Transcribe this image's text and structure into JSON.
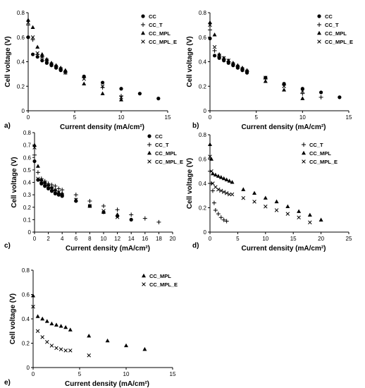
{
  "chart_data": [
    {
      "panel_label": "a)",
      "type": "scatter",
      "xlabel": "Current density (mA/cm²)",
      "ylabel": "Cell voltage (V)",
      "xlim": [
        0,
        15
      ],
      "ylim": [
        0,
        0.8
      ],
      "xticks": [
        0,
        5,
        10,
        15
      ],
      "yticks": [
        0,
        0.2,
        0.4,
        0.6,
        0.8
      ],
      "legend": "top-right",
      "series": [
        {
          "name": "CC",
          "marker": "circle",
          "x": [
            0,
            0.5,
            1,
            1.5,
            2,
            2.5,
            3,
            3.5,
            4,
            6,
            8,
            10,
            12,
            14
          ],
          "y": [
            0.6,
            0.46,
            0.44,
            0.41,
            0.39,
            0.37,
            0.35,
            0.33,
            0.32,
            0.28,
            0.23,
            0.18,
            0.14,
            0.1
          ]
        },
        {
          "name": "CC_T",
          "marker": "plus",
          "x": [
            0,
            0.5,
            1,
            1.5,
            2,
            2.5,
            3,
            3.5,
            4,
            6,
            8,
            10
          ],
          "y": [
            0.7,
            0.58,
            0.46,
            0.44,
            0.41,
            0.38,
            0.36,
            0.34,
            0.31,
            0.27,
            0.19,
            0.12
          ]
        },
        {
          "name": "CC_MPL",
          "marker": "triangle",
          "x": [
            0,
            0.5,
            1,
            1.5,
            2,
            2.5,
            3,
            3.5,
            4,
            6,
            8,
            10
          ],
          "y": [
            0.74,
            0.68,
            0.52,
            0.46,
            0.42,
            0.39,
            0.37,
            0.35,
            0.33,
            0.22,
            0.14,
            0.09
          ]
        },
        {
          "name": "CC_MPL_E",
          "marker": "x",
          "x": [
            0,
            0.5,
            1,
            1.5,
            2,
            2.5,
            3,
            3.5,
            4,
            6,
            8,
            10
          ],
          "y": [
            0.72,
            0.6,
            0.47,
            0.44,
            0.41,
            0.38,
            0.36,
            0.34,
            0.31,
            0.26,
            0.2,
            0.11
          ]
        }
      ]
    },
    {
      "panel_label": "b)",
      "type": "scatter",
      "xlabel": "Current density (mA/cm²)",
      "ylabel": "Cell voltage (V)",
      "xlim": [
        0,
        15
      ],
      "ylim": [
        0,
        0.8
      ],
      "xticks": [
        0,
        5,
        10,
        15
      ],
      "yticks": [
        0,
        0.2,
        0.4,
        0.6,
        0.8
      ],
      "legend": "top-right",
      "series": [
        {
          "name": "CC",
          "marker": "circle",
          "x": [
            0,
            0.5,
            1,
            1.5,
            2,
            2.5,
            3,
            3.5,
            4,
            6,
            8,
            10,
            12,
            14
          ],
          "y": [
            0.59,
            0.45,
            0.43,
            0.41,
            0.39,
            0.37,
            0.35,
            0.33,
            0.31,
            0.27,
            0.22,
            0.18,
            0.15,
            0.11
          ]
        },
        {
          "name": "CC_T",
          "marker": "plus",
          "x": [
            0,
            0.5,
            1,
            1.5,
            2,
            2.5,
            3,
            3.5,
            4,
            6,
            8,
            10,
            12
          ],
          "y": [
            0.66,
            0.49,
            0.44,
            0.42,
            0.4,
            0.38,
            0.36,
            0.34,
            0.32,
            0.26,
            0.21,
            0.14,
            0.11
          ]
        },
        {
          "name": "CC_MPL",
          "marker": "triangle",
          "x": [
            0,
            0.5,
            1,
            1.5,
            2,
            2.5,
            3,
            3.5,
            4,
            6,
            8,
            10
          ],
          "y": [
            0.72,
            0.62,
            0.46,
            0.43,
            0.41,
            0.39,
            0.37,
            0.35,
            0.33,
            0.24,
            0.17,
            0.1
          ]
        },
        {
          "name": "CC_MPL_E",
          "marker": "x",
          "x": [
            0,
            0.5,
            1,
            1.5,
            2,
            2.5,
            3,
            3.5,
            4,
            6,
            8,
            10
          ],
          "y": [
            0.7,
            0.52,
            0.45,
            0.43,
            0.41,
            0.38,
            0.36,
            0.34,
            0.32,
            0.27,
            0.2,
            0.16
          ]
        }
      ]
    },
    {
      "panel_label": "c)",
      "type": "scatter",
      "xlabel": "Current density (mA/cm²)",
      "ylabel": "Cell voltage (V)",
      "xlim": [
        0,
        20
      ],
      "ylim": [
        0,
        0.8
      ],
      "xticks": [
        0,
        2,
        4,
        6,
        8,
        10,
        12,
        14,
        16,
        18,
        20
      ],
      "yticks": [
        0,
        0.1,
        0.2,
        0.3,
        0.4,
        0.5,
        0.6,
        0.7,
        0.8
      ],
      "legend": "top-right",
      "series": [
        {
          "name": "CC",
          "marker": "circle",
          "x": [
            0,
            0.5,
            1,
            1.5,
            2,
            2.5,
            3,
            3.5,
            4,
            6,
            8,
            10,
            12,
            14
          ],
          "y": [
            0.57,
            0.42,
            0.39,
            0.37,
            0.35,
            0.33,
            0.31,
            0.3,
            0.29,
            0.25,
            0.21,
            0.16,
            0.13,
            0.1
          ]
        },
        {
          "name": "CC_T",
          "marker": "plus",
          "x": [
            0,
            0.5,
            1,
            1.5,
            2,
            2.5,
            3,
            3.5,
            4,
            6,
            8,
            10,
            12,
            14,
            16,
            18
          ],
          "y": [
            0.62,
            0.48,
            0.43,
            0.41,
            0.39,
            0.38,
            0.37,
            0.35,
            0.34,
            0.3,
            0.25,
            0.21,
            0.18,
            0.14,
            0.11,
            0.08
          ]
        },
        {
          "name": "CC_MPL",
          "marker": "triangle",
          "x": [
            0,
            0.5,
            1,
            1.5,
            2,
            2.5,
            3,
            3.5,
            4,
            6,
            8,
            10,
            12
          ],
          "y": [
            0.7,
            0.53,
            0.42,
            0.4,
            0.38,
            0.36,
            0.34,
            0.32,
            0.31,
            0.26,
            0.21,
            0.16,
            0.14
          ]
        },
        {
          "name": "CC_MPL_E",
          "marker": "x",
          "x": [
            0,
            0.5,
            1,
            1.5,
            2,
            2.5,
            3,
            3.5,
            4,
            6,
            8,
            10,
            12
          ],
          "y": [
            0.68,
            0.43,
            0.41,
            0.39,
            0.37,
            0.35,
            0.33,
            0.32,
            0.3,
            0.26,
            0.21,
            0.17,
            0.12
          ]
        }
      ]
    },
    {
      "panel_label": "d)",
      "type": "scatter",
      "xlabel": "Current density (mA/cm²)",
      "ylabel": "Cell voltage (V)",
      "xlim": [
        0,
        25
      ],
      "ylim": [
        0,
        0.8
      ],
      "xticks": [
        0,
        5,
        10,
        15,
        20,
        25
      ],
      "yticks": [
        0,
        0.2,
        0.4,
        0.6,
        0.8
      ],
      "legend": "top-right",
      "series": [
        {
          "name": "CC_T",
          "marker": "plus",
          "x": [
            0,
            0.25,
            0.5,
            0.75,
            1,
            1.5,
            2,
            2.5,
            3
          ],
          "y": [
            0.5,
            0.4,
            0.34,
            0.24,
            0.18,
            0.15,
            0.12,
            0.1,
            0.09
          ]
        },
        {
          "name": "CC_MPL",
          "marker": "triangle",
          "x": [
            0,
            0.25,
            0.5,
            1,
            1.5,
            2,
            2.5,
            3,
            3.5,
            4,
            6,
            8,
            10,
            12,
            14,
            16,
            18,
            20
          ],
          "y": [
            0.72,
            0.6,
            0.48,
            0.47,
            0.46,
            0.45,
            0.44,
            0.43,
            0.42,
            0.41,
            0.35,
            0.32,
            0.28,
            0.25,
            0.21,
            0.17,
            0.14,
            0.1
          ]
        },
        {
          "name": "CC_MPL_E",
          "marker": "x",
          "x": [
            0,
            0.25,
            0.5,
            1,
            1.5,
            2,
            2.5,
            3,
            3.5,
            4,
            6,
            8,
            10,
            12,
            14,
            16,
            18
          ],
          "y": [
            0.62,
            0.5,
            0.4,
            0.37,
            0.35,
            0.34,
            0.33,
            0.32,
            0.31,
            0.31,
            0.28,
            0.25,
            0.21,
            0.18,
            0.15,
            0.12,
            0.08
          ]
        }
      ]
    },
    {
      "panel_label": "e)",
      "type": "scatter",
      "xlabel": "Current density (mA/cm²)",
      "ylabel": "Cell voltage (V)",
      "xlim": [
        0,
        15
      ],
      "ylim": [
        0,
        0.8
      ],
      "xticks": [
        0,
        5,
        10,
        15
      ],
      "yticks": [
        0,
        0.2,
        0.4,
        0.6,
        0.8
      ],
      "legend": "top-right",
      "series": [
        {
          "name": "CC_MPL",
          "marker": "triangle",
          "x": [
            0,
            0.5,
            1,
            1.5,
            2,
            2.5,
            3,
            3.5,
            4,
            6,
            8,
            10,
            12
          ],
          "y": [
            0.59,
            0.42,
            0.4,
            0.38,
            0.36,
            0.35,
            0.34,
            0.33,
            0.31,
            0.26,
            0.22,
            0.18,
            0.15
          ]
        },
        {
          "name": "CC_MPL_E",
          "marker": "x",
          "x": [
            0,
            0.5,
            1,
            1.5,
            2,
            2.5,
            3,
            3.5,
            4,
            6
          ],
          "y": [
            0.5,
            0.3,
            0.25,
            0.21,
            0.18,
            0.16,
            0.15,
            0.14,
            0.14,
            0.1
          ]
        }
      ]
    }
  ]
}
